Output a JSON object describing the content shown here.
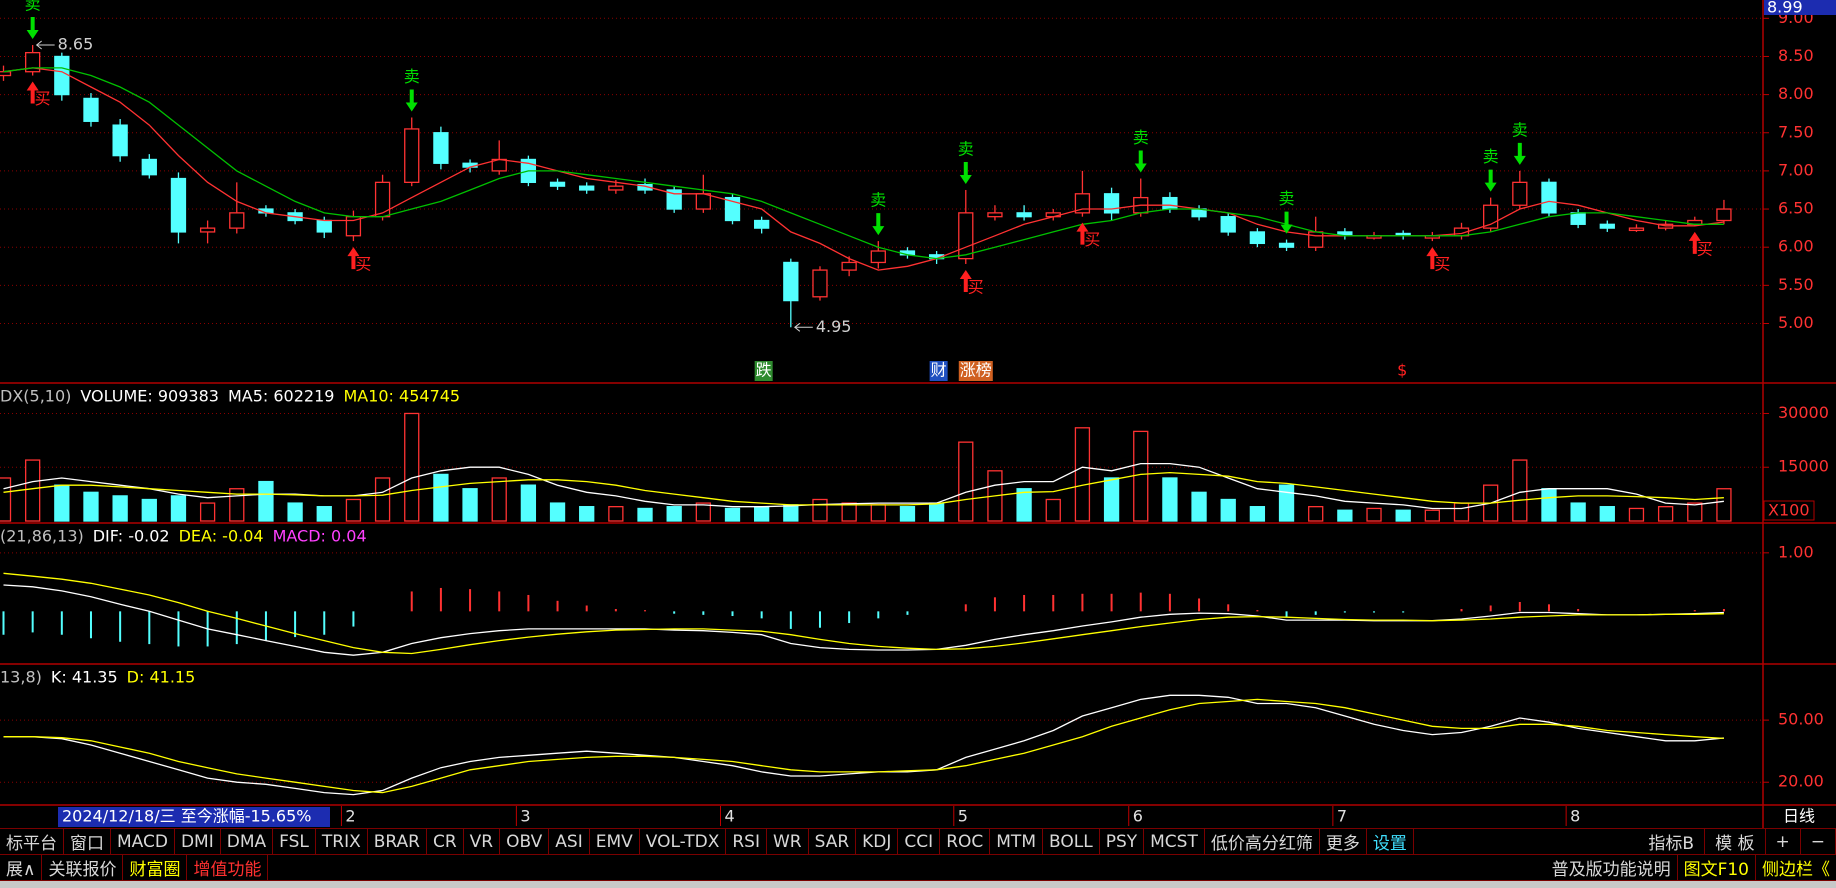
{
  "chart_data": [
    {
      "type": "candlestick",
      "open": [
        8.25,
        8.3,
        8.5,
        7.95,
        7.6,
        7.15,
        6.9,
        6.2,
        6.25,
        6.5,
        6.45,
        6.35,
        6.15,
        6.4,
        6.85,
        7.5,
        7.1,
        7.0,
        7.15,
        6.85,
        6.8,
        6.75,
        6.82,
        6.75,
        6.5,
        6.65,
        6.35,
        5.8,
        5.35,
        5.7,
        5.8,
        5.95,
        5.9,
        5.85,
        6.4,
        6.45,
        6.4,
        6.45,
        6.7,
        6.45,
        6.65,
        6.5,
        6.4,
        6.2,
        6.05,
        6.0,
        6.2,
        6.12,
        6.18,
        6.12,
        6.15,
        6.25,
        6.55,
        6.85,
        6.45,
        6.3,
        6.22,
        6.25,
        6.3,
        6.35
      ],
      "high": [
        8.38,
        8.65,
        8.55,
        8.02,
        7.68,
        7.22,
        6.98,
        6.35,
        6.85,
        6.55,
        6.5,
        6.4,
        6.48,
        6.95,
        7.7,
        7.58,
        7.15,
        7.4,
        7.2,
        6.9,
        6.85,
        6.88,
        6.9,
        6.8,
        6.95,
        6.7,
        6.4,
        5.85,
        5.75,
        5.88,
        6.08,
        6.0,
        5.95,
        6.75,
        6.55,
        6.55,
        6.5,
        7.0,
        6.78,
        6.9,
        6.72,
        6.55,
        6.45,
        6.25,
        6.1,
        6.4,
        6.25,
        6.2,
        6.22,
        6.2,
        6.32,
        6.65,
        7.0,
        6.9,
        6.5,
        6.35,
        6.3,
        6.35,
        6.4,
        6.62
      ],
      "low": [
        8.18,
        8.25,
        7.92,
        7.58,
        7.12,
        6.9,
        6.05,
        6.05,
        6.18,
        6.4,
        6.3,
        6.12,
        6.08,
        6.35,
        6.8,
        7.02,
        6.98,
        6.95,
        6.8,
        6.75,
        6.7,
        6.7,
        6.7,
        6.45,
        6.45,
        6.3,
        6.18,
        4.95,
        5.3,
        5.62,
        5.72,
        5.85,
        5.78,
        5.78,
        6.35,
        6.35,
        6.35,
        6.4,
        6.35,
        6.4,
        6.45,
        6.35,
        6.15,
        6.0,
        5.95,
        5.95,
        6.1,
        6.1,
        6.1,
        6.08,
        6.1,
        6.2,
        6.5,
        6.4,
        6.25,
        6.2,
        6.2,
        6.22,
        6.28,
        6.3
      ],
      "close": [
        8.3,
        8.55,
        8.0,
        7.65,
        7.2,
        6.95,
        6.2,
        6.25,
        6.45,
        6.45,
        6.35,
        6.2,
        6.4,
        6.85,
        7.55,
        7.1,
        7.05,
        7.15,
        6.85,
        6.8,
        6.75,
        6.8,
        6.75,
        6.5,
        6.7,
        6.35,
        6.25,
        5.3,
        5.7,
        5.8,
        5.95,
        5.9,
        5.85,
        6.45,
        6.45,
        6.4,
        6.45,
        6.7,
        6.45,
        6.65,
        6.5,
        6.4,
        6.2,
        6.05,
        6.0,
        6.2,
        6.15,
        6.15,
        6.15,
        6.15,
        6.25,
        6.55,
        6.85,
        6.45,
        6.3,
        6.25,
        6.25,
        6.3,
        6.35,
        6.5
      ],
      "up_color": "#ff3232",
      "down_color": "#54ffff",
      "lines": [
        {
          "color": "#ff3232",
          "values": [
            8.3,
            8.35,
            8.3,
            8.1,
            7.9,
            7.6,
            7.2,
            6.85,
            6.6,
            6.45,
            6.4,
            6.35,
            6.35,
            6.45,
            6.65,
            6.85,
            7.05,
            7.15,
            7.1,
            7.0,
            6.9,
            6.85,
            6.8,
            6.7,
            6.7,
            6.6,
            6.5,
            6.2,
            6.05,
            5.85,
            5.7,
            5.75,
            5.85,
            6.0,
            6.15,
            6.3,
            6.4,
            6.5,
            6.5,
            6.55,
            6.55,
            6.5,
            6.45,
            6.3,
            6.2,
            6.15,
            6.15,
            6.15,
            6.15,
            6.15,
            6.18,
            6.3,
            6.5,
            6.6,
            6.55,
            6.45,
            6.35,
            6.28,
            6.28,
            6.33
          ]
        },
        {
          "color": "#00c000",
          "values": [
            8.3,
            8.35,
            8.35,
            8.25,
            8.1,
            7.9,
            7.6,
            7.3,
            7.0,
            6.8,
            6.6,
            6.45,
            6.4,
            6.4,
            6.5,
            6.6,
            6.75,
            6.9,
            7.0,
            7.0,
            6.95,
            6.9,
            6.85,
            6.8,
            6.75,
            6.7,
            6.6,
            6.45,
            6.3,
            6.15,
            6.0,
            5.9,
            5.85,
            5.9,
            6.0,
            6.1,
            6.2,
            6.3,
            6.35,
            6.45,
            6.5,
            6.5,
            6.45,
            6.4,
            6.3,
            6.2,
            6.15,
            6.15,
            6.15,
            6.15,
            6.15,
            6.2,
            6.3,
            6.4,
            6.45,
            6.45,
            6.4,
            6.35,
            6.3,
            6.3
          ]
        }
      ],
      "ylim": [
        4.22,
        9.24
      ],
      "yticks": [
        {
          "value": 9,
          "label": "9.00"
        },
        {
          "value": 8.5,
          "label": "8.50"
        },
        {
          "value": 8,
          "label": "8.00"
        },
        {
          "value": 7.5,
          "label": "7.50"
        },
        {
          "value": 7,
          "label": "7.00"
        },
        {
          "value": 6.5,
          "label": "6.50"
        },
        {
          "value": 6,
          "label": "6.00"
        },
        {
          "value": 5.5,
          "label": "5.50"
        },
        {
          "value": 5,
          "label": "5.00"
        }
      ],
      "grid": true,
      "axis_top_label": "8.99",
      "annotations": [
        {
          "index": 1,
          "field": "high",
          "text": "8.65"
        },
        {
          "index": 27,
          "field": "low",
          "text": "4.95"
        }
      ],
      "sell_signals": {
        "text": "卖",
        "color": "#00e000",
        "indices": [
          1,
          14,
          30,
          33,
          39,
          44,
          51,
          52
        ]
      },
      "buy_signals": {
        "text": "买",
        "color": "#ff2020",
        "indices": [
          1,
          12,
          33,
          37,
          49,
          58
        ]
      },
      "badges": [
        {
          "index": 26,
          "text": "跌",
          "color": "#ffffff",
          "background": "#2e8b2e"
        },
        {
          "index": 32,
          "text": "财",
          "color": "#ffffff",
          "background": "#2050c0"
        },
        {
          "index": 33,
          "text": "涨榜",
          "color": "#ffffff",
          "background": "#d06020"
        },
        {
          "index": 48,
          "text": "$",
          "color": "#ff2020",
          "background": "#000000"
        }
      ]
    },
    {
      "type": "volume",
      "header": [
        {
          "text": "DX(5,10)",
          "color": "#c0c0c0"
        },
        {
          "text": "VOLUME: 909383",
          "color": "#ffffff"
        },
        {
          "text": "MA5: 602219",
          "color": "#ffffff"
        },
        {
          "text": "MA10: 454745",
          "color": "#ffff00"
        }
      ],
      "values": [
        12000,
        17000,
        10000,
        8000,
        7000,
        6000,
        7000,
        5000,
        9000,
        11000,
        5000,
        4000,
        6000,
        12000,
        30000,
        13000,
        9000,
        12000,
        10000,
        5000,
        4000,
        4000,
        3500,
        4000,
        5000,
        3500,
        4000,
        4500,
        6000,
        5000,
        4500,
        4000,
        5000,
        22000,
        14000,
        9000,
        6000,
        26000,
        12000,
        25000,
        12000,
        8000,
        6000,
        4000,
        10000,
        4000,
        3000,
        3500,
        3000,
        3000,
        5000,
        10000,
        17000,
        9000,
        5000,
        4000,
        3500,
        4000,
        5000,
        9000
      ],
      "lines": [
        {
          "color": "#ffffff",
          "values": [
            9000,
            11000,
            12000,
            11000,
            10000,
            9000,
            7500,
            6500,
            7000,
            7500,
            7500,
            7000,
            7000,
            8000,
            12000,
            14000,
            15000,
            15000,
            13000,
            10000,
            8000,
            7000,
            5500,
            4500,
            4500,
            4000,
            4000,
            4200,
            4600,
            4800,
            5000,
            5000,
            5000,
            8000,
            10000,
            11000,
            11000,
            15000,
            14000,
            16000,
            16000,
            15000,
            12000,
            9000,
            8000,
            7000,
            5500,
            5000,
            4500,
            3500,
            3500,
            5000,
            8000,
            9000,
            9000,
            9000,
            7500,
            5000,
            4500,
            5500
          ]
        },
        {
          "color": "#ffff00",
          "values": [
            8000,
            9000,
            10000,
            10000,
            9500,
            9000,
            8500,
            8000,
            7500,
            7500,
            7300,
            7000,
            7000,
            7200,
            8500,
            9500,
            10500,
            11000,
            11500,
            11500,
            11000,
            10000,
            8500,
            7500,
            6500,
            5500,
            5000,
            4500,
            4500,
            4500,
            4500,
            4500,
            4800,
            6000,
            7000,
            8000,
            8200,
            10000,
            11500,
            13000,
            13500,
            13000,
            12500,
            11000,
            10500,
            9500,
            8500,
            7500,
            6500,
            5500,
            5000,
            5000,
            5800,
            6500,
            7000,
            7000,
            6800,
            6500,
            6000,
            6500
          ]
        }
      ],
      "ylim": [
        0,
        38500
      ],
      "yticks": [
        30000,
        15000
      ],
      "grid": true,
      "unit_label": "X100"
    },
    {
      "type": "macd",
      "header": [
        {
          "text": "(21,86,13)",
          "color": "#c0c0c0"
        },
        {
          "text": "DIF: -0.02",
          "color": "#ffffff"
        },
        {
          "text": "DEA: -0.04",
          "color": "#ffff00"
        },
        {
          "text": "MACD: 0.04",
          "color": "#ff40ff"
        }
      ],
      "values": [
        -0.4,
        -0.36,
        -0.4,
        -0.46,
        -0.52,
        -0.56,
        -0.6,
        -0.6,
        -0.56,
        -0.5,
        -0.44,
        -0.4,
        -0.26,
        0.0,
        0.34,
        0.4,
        0.38,
        0.34,
        0.28,
        0.18,
        0.1,
        0.04,
        0.02,
        -0.04,
        -0.06,
        -0.08,
        -0.12,
        -0.3,
        -0.28,
        -0.2,
        -0.12,
        -0.06,
        0.0,
        0.12,
        0.24,
        0.28,
        0.28,
        0.3,
        0.3,
        0.32,
        0.3,
        0.22,
        0.12,
        0.02,
        -0.1,
        -0.06,
        -0.02,
        -0.02,
        -0.02,
        0.0,
        0.04,
        0.1,
        0.16,
        0.12,
        0.04,
        0.0,
        0.0,
        0.0,
        0.02,
        0.04
      ],
      "up_color": "#ff3232",
      "down_color": "#54ffff",
      "lines": [
        {
          "color": "#ffffff",
          "values": [
            0.45,
            0.42,
            0.35,
            0.25,
            0.12,
            0.0,
            -0.15,
            -0.3,
            -0.4,
            -0.5,
            -0.6,
            -0.7,
            -0.75,
            -0.7,
            -0.55,
            -0.45,
            -0.38,
            -0.33,
            -0.3,
            -0.3,
            -0.3,
            -0.3,
            -0.3,
            -0.32,
            -0.33,
            -0.36,
            -0.4,
            -0.55,
            -0.62,
            -0.65,
            -0.66,
            -0.66,
            -0.65,
            -0.58,
            -0.48,
            -0.4,
            -0.33,
            -0.25,
            -0.18,
            -0.1,
            -0.05,
            -0.03,
            -0.04,
            -0.08,
            -0.15,
            -0.15,
            -0.15,
            -0.16,
            -0.16,
            -0.16,
            -0.13,
            -0.08,
            -0.02,
            -0.02,
            -0.04,
            -0.06,
            -0.06,
            -0.05,
            -0.04,
            -0.02
          ]
        },
        {
          "color": "#ffff00",
          "values": [
            0.65,
            0.6,
            0.55,
            0.48,
            0.38,
            0.28,
            0.15,
            0.0,
            -0.12,
            -0.25,
            -0.38,
            -0.5,
            -0.62,
            -0.7,
            -0.72,
            -0.65,
            -0.57,
            -0.5,
            -0.44,
            -0.39,
            -0.35,
            -0.32,
            -0.31,
            -0.3,
            -0.3,
            -0.32,
            -0.34,
            -0.4,
            -0.48,
            -0.55,
            -0.6,
            -0.63,
            -0.65,
            -0.64,
            -0.6,
            -0.54,
            -0.47,
            -0.4,
            -0.33,
            -0.26,
            -0.2,
            -0.14,
            -0.1,
            -0.09,
            -0.1,
            -0.12,
            -0.14,
            -0.15,
            -0.15,
            -0.16,
            -0.15,
            -0.13,
            -0.1,
            -0.08,
            -0.06,
            -0.06,
            -0.06,
            -0.05,
            -0.05,
            -0.04
          ]
        }
      ],
      "ylim": [
        -0.9,
        1.51
      ],
      "yticks": [
        {
          "value": 1,
          "label": "1.00"
        }
      ],
      "grid": true
    },
    {
      "type": "kdj",
      "header": [
        {
          "text": "13,8)",
          "color": "#c0c0c0"
        },
        {
          "text": "K: 41.35",
          "color": "#ffffff"
        },
        {
          "text": "D: 41.15",
          "color": "#ffff00"
        }
      ],
      "lines": [
        {
          "color": "#ffffff",
          "values": [
            42,
            42,
            41,
            38,
            34,
            30,
            26,
            22,
            20,
            19,
            17,
            15,
            14,
            16,
            22,
            27,
            30,
            32,
            33,
            34,
            35,
            34,
            33,
            32,
            30,
            28,
            25,
            23,
            23,
            24,
            25,
            25,
            26,
            32,
            36,
            40,
            45,
            52,
            56,
            60,
            62,
            62,
            61,
            58,
            58,
            56,
            52,
            48,
            45,
            43,
            44,
            47,
            51,
            49,
            46,
            44,
            42,
            40,
            40,
            41.35
          ]
        },
        {
          "color": "#ffff00",
          "values": [
            42,
            42,
            41.5,
            40,
            37,
            34,
            30,
            27,
            24,
            22,
            20,
            18,
            16,
            15,
            18,
            22,
            26,
            28,
            30,
            31,
            32,
            32.5,
            32.5,
            32,
            31,
            30,
            28,
            26,
            25,
            25,
            25,
            25.5,
            26,
            28,
            31,
            34,
            38,
            42,
            47,
            51,
            55,
            58,
            59,
            60,
            59,
            58,
            56,
            53,
            50,
            47,
            46,
            46,
            48,
            48,
            47,
            45,
            44,
            43,
            42,
            41.15
          ]
        }
      ],
      "ylim": [
        9,
        77.1
      ],
      "yticks": [
        {
          "value": 50,
          "label": "50.00"
        },
        {
          "value": 20,
          "label": "20.00"
        }
      ],
      "grid": true
    }
  ],
  "date_bar": {
    "current": "2024/12/18/三  至今涨幅-15.65%",
    "months": [
      {
        "value": 12,
        "label": "2"
      },
      {
        "value": 18,
        "label": "3"
      },
      {
        "value": 25,
        "label": "4"
      },
      {
        "value": 33,
        "label": "5"
      },
      {
        "value": 39,
        "label": "6"
      },
      {
        "value": 46,
        "label": "7"
      },
      {
        "value": 54,
        "label": "8"
      }
    ],
    "period": "日线"
  },
  "toolbar": {
    "tabs": [
      "标平台",
      "窗口",
      "MACD",
      "DMI",
      "DMA",
      "FSL",
      "TRIX",
      "BRAR",
      "CR",
      "VR",
      "OBV",
      "ASI",
      "EMV",
      "VOL-TDX",
      "RSI",
      "WR",
      "SAR",
      "KDJ",
      "CCI",
      "ROC",
      "MTM",
      "BOLL",
      "PSY",
      "MCST",
      "低价高分红筛",
      "更多",
      "设置"
    ],
    "right": [
      "指标B",
      "模 板",
      "+",
      "−"
    ]
  },
  "status": {
    "left": [
      "展∧",
      "关联报价",
      "财富圈",
      "增值功能"
    ],
    "right": [
      "普及版功能说明",
      "图文F10",
      "侧边栏《"
    ]
  }
}
